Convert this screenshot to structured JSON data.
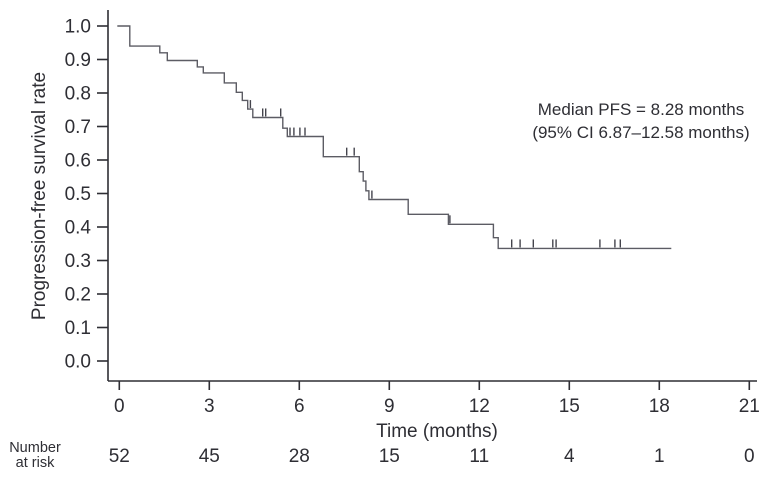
{
  "chart_data": {
    "type": "line",
    "subtype": "kaplan_meier_step_curve",
    "title": "",
    "xlabel": "Time (months)",
    "ylabel": "Progression-free survival rate",
    "xlim": [
      0,
      21
    ],
    "ylim": [
      0.0,
      1.0
    ],
    "x_ticks": [
      "0",
      "3",
      "6",
      "9",
      "12",
      "15",
      "18",
      "21"
    ],
    "y_ticks": [
      "1.0",
      "0.9",
      "0.8",
      "0.7",
      "0.6",
      "0.5",
      "0.4",
      "0.3",
      "0.2",
      "0.1",
      "0.0"
    ],
    "grid": false,
    "legend_position": "none",
    "annotation": {
      "line1": "Median PFS = 8.28 months",
      "line2": "(95% CI 6.87–12.58 months)"
    },
    "series": [
      {
        "name": "Progression-free survival",
        "steps": [
          [
            0.0,
            1.0
          ],
          [
            0.35,
            0.94
          ],
          [
            1.35,
            0.92
          ],
          [
            1.6,
            0.897
          ],
          [
            2.6,
            0.878
          ],
          [
            2.8,
            0.86
          ],
          [
            3.5,
            0.83
          ],
          [
            3.9,
            0.802
          ],
          [
            4.1,
            0.778
          ],
          [
            4.28,
            0.752
          ],
          [
            4.45,
            0.727
          ],
          [
            5.45,
            0.695
          ],
          [
            5.6,
            0.67
          ],
          [
            6.8,
            0.61
          ],
          [
            8.0,
            0.565
          ],
          [
            8.13,
            0.537
          ],
          [
            8.22,
            0.508
          ],
          [
            8.32,
            0.482
          ],
          [
            9.63,
            0.438
          ],
          [
            10.97,
            0.408
          ],
          [
            12.47,
            0.368
          ],
          [
            12.63,
            0.336
          ]
        ],
        "end_time": 18.4,
        "censor_marks": [
          [
            4.37,
            0.752
          ],
          [
            4.78,
            0.727
          ],
          [
            4.88,
            0.727
          ],
          [
            5.38,
            0.727
          ],
          [
            5.69,
            0.67
          ],
          [
            5.82,
            0.67
          ],
          [
            6.02,
            0.67
          ],
          [
            6.19,
            0.67
          ],
          [
            7.58,
            0.61
          ],
          [
            7.83,
            0.61
          ],
          [
            8.42,
            0.482
          ],
          [
            11.02,
            0.408
          ],
          [
            13.08,
            0.336
          ],
          [
            13.36,
            0.336
          ],
          [
            13.8,
            0.336
          ],
          [
            14.45,
            0.336
          ],
          [
            14.56,
            0.336
          ],
          [
            16.02,
            0.336
          ],
          [
            16.52,
            0.336
          ],
          [
            16.7,
            0.336
          ]
        ]
      }
    ],
    "risk_table": {
      "label_line1": "Number",
      "label_line2": "at risk",
      "times": [
        0,
        3,
        6,
        9,
        12,
        15,
        18,
        21
      ],
      "values": [
        "52",
        "45",
        "28",
        "15",
        "11",
        "4",
        "1",
        "0"
      ]
    },
    "colors": {
      "curve": "#5c5c64",
      "censor": "#44444c",
      "axis": "#2e2e34",
      "text": "#2e2e34"
    }
  }
}
